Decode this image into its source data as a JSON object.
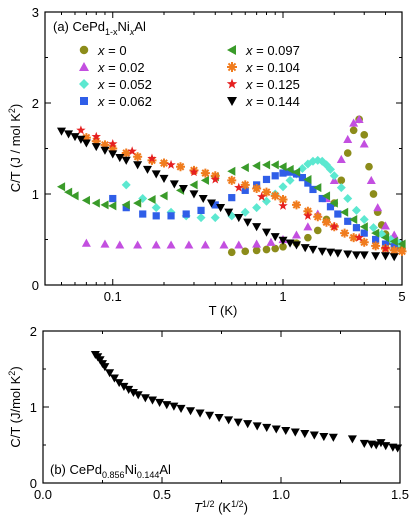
{
  "chart_data": [
    {
      "type": "scatter",
      "panel_label": "(a) CePd",
      "formula_sub1": "1-x",
      "formula_mid": "Ni",
      "formula_sub2": "x",
      "formula_end": "Al",
      "xlabel": "T (K)",
      "ylabel_parts": {
        "pre": "C/T (J / mol K",
        "sup": "2",
        "post": ")"
      },
      "x_scale": "log",
      "xlim": [
        0.04,
        5
      ],
      "ylim": [
        0,
        3
      ],
      "x_ticks": [
        {
          "v": 0.1,
          "label": "0.1"
        },
        {
          "v": 1,
          "label": "1"
        },
        {
          "v": 5,
          "label": "5"
        }
      ],
      "y_ticks": [
        {
          "v": 0,
          "label": "0"
        },
        {
          "v": 1,
          "label": "1"
        },
        {
          "v": 2,
          "label": "2"
        },
        {
          "v": 3,
          "label": "3"
        }
      ],
      "legend_position": "top",
      "series": [
        {
          "name": "x = 0",
          "x_text": "x",
          "val_text": " = 0",
          "marker": "circle",
          "color": "#8c8c1a",
          "x": [
            0.5,
            0.6,
            0.7,
            0.8,
            0.9,
            1.0,
            1.2,
            1.4,
            1.6,
            1.8,
            2.0,
            2.2,
            2.4,
            2.6,
            2.8,
            3.0,
            3.2,
            3.4,
            3.6,
            3.8,
            4.0,
            4.3,
            4.6,
            5.0
          ],
          "y": [
            0.36,
            0.37,
            0.38,
            0.39,
            0.4,
            0.42,
            0.46,
            0.52,
            0.6,
            0.72,
            0.9,
            1.15,
            1.45,
            1.7,
            1.82,
            1.65,
            1.3,
            1.0,
            0.8,
            0.66,
            0.56,
            0.48,
            0.43,
            0.4
          ]
        },
        {
          "name": "x = 0.02",
          "x_text": "x",
          "val_text": " = 0.02",
          "marker": "triangle-up",
          "color": "#c34fe0",
          "x": [
            0.07,
            0.09,
            0.11,
            0.14,
            0.18,
            0.22,
            0.28,
            0.35,
            0.45,
            0.55,
            0.7,
            0.85,
            1.0,
            1.2,
            1.4,
            1.6,
            1.8,
            2.0,
            2.2,
            2.4,
            2.6,
            2.8,
            3.0,
            3.3,
            3.6,
            4.0,
            4.5
          ],
          "y": [
            0.46,
            0.45,
            0.44,
            0.44,
            0.44,
            0.44,
            0.44,
            0.44,
            0.44,
            0.44,
            0.45,
            0.47,
            0.5,
            0.55,
            0.64,
            0.78,
            0.95,
            1.15,
            1.38,
            1.6,
            1.78,
            1.82,
            1.55,
            1.15,
            0.85,
            0.65,
            0.55
          ]
        },
        {
          "name": "x = 0.052",
          "x_text": "x",
          "val_text": " = 0.052",
          "marker": "diamond",
          "color": "#5ce8d0",
          "x": [
            0.12,
            0.15,
            0.18,
            0.22,
            0.27,
            0.33,
            0.4,
            0.5,
            0.6,
            0.7,
            0.8,
            0.9,
            1.0,
            1.1,
            1.2,
            1.3,
            1.4,
            1.5,
            1.6,
            1.7,
            1.8,
            1.9,
            2.0,
            2.2,
            2.4,
            2.7,
            3.0,
            3.4,
            3.8,
            4.3,
            4.8
          ],
          "y": [
            1.1,
            0.95,
            0.85,
            0.8,
            0.76,
            0.74,
            0.74,
            0.76,
            0.8,
            0.85,
            0.92,
            1.0,
            1.08,
            1.15,
            1.22,
            1.28,
            1.33,
            1.36,
            1.37,
            1.36,
            1.32,
            1.27,
            1.2,
            1.07,
            0.95,
            0.82,
            0.72,
            0.63,
            0.56,
            0.5,
            0.46
          ]
        },
        {
          "name": "x = 0.062",
          "x_text": "x",
          "val_text": " = 0.062",
          "marker": "square",
          "color": "#2f5ee8",
          "x": [
            0.1,
            0.12,
            0.15,
            0.18,
            0.22,
            0.27,
            0.33,
            0.4,
            0.5,
            0.6,
            0.7,
            0.8,
            0.9,
            1.0,
            1.1,
            1.2,
            1.3,
            1.4,
            1.5,
            1.7,
            1.9,
            2.1,
            2.4,
            2.7,
            3.0,
            3.5,
            4.0,
            4.5
          ],
          "y": [
            0.95,
            0.85,
            0.78,
            0.76,
            0.76,
            0.78,
            0.82,
            0.88,
            0.96,
            1.04,
            1.1,
            1.16,
            1.2,
            1.23,
            1.24,
            1.22,
            1.18,
            1.12,
            1.05,
            0.95,
            0.86,
            0.78,
            0.7,
            0.63,
            0.57,
            0.5,
            0.45,
            0.42
          ]
        },
        {
          "name": "x = 0.097",
          "x_text": "x",
          "val_text": " = 0.097",
          "marker": "triangle-left",
          "color": "#3a9b2a",
          "x": [
            0.05,
            0.055,
            0.06,
            0.07,
            0.08,
            0.09,
            0.1,
            0.12,
            0.14,
            0.17,
            0.2,
            0.25,
            0.3,
            0.35,
            0.4,
            0.5,
            0.6,
            0.7,
            0.8,
            0.9,
            1.0,
            1.1,
            1.2,
            1.4,
            1.6,
            1.8,
            2.0,
            2.3,
            2.6,
            3.0,
            3.5,
            4.0,
            4.5,
            5.0
          ],
          "y": [
            1.08,
            1.02,
            0.98,
            0.93,
            0.9,
            0.88,
            0.87,
            0.88,
            0.9,
            0.94,
            0.98,
            1.04,
            1.1,
            1.15,
            1.19,
            1.25,
            1.29,
            1.31,
            1.32,
            1.32,
            1.3,
            1.27,
            1.24,
            1.16,
            1.07,
            0.98,
            0.9,
            0.8,
            0.72,
            0.64,
            0.57,
            0.52,
            0.48,
            0.45
          ]
        },
        {
          "name": "x = 0.104",
          "x_text": "x",
          "val_text": " = 0.104",
          "marker": "asterisk",
          "color": "#f07c1e",
          "x": [
            0.07,
            0.08,
            0.09,
            0.1,
            0.12,
            0.14,
            0.17,
            0.2,
            0.25,
            0.3,
            0.35,
            0.4,
            0.5,
            0.6,
            0.7,
            0.8,
            0.9,
            1.0,
            1.2,
            1.4,
            1.6,
            1.8,
            2.0,
            2.3,
            2.6,
            3.0,
            3.5,
            4.0,
            4.5,
            5.0
          ],
          "y": [
            1.62,
            1.58,
            1.54,
            1.5,
            1.45,
            1.41,
            1.37,
            1.34,
            1.3,
            1.26,
            1.23,
            1.2,
            1.15,
            1.1,
            1.06,
            1.02,
            0.98,
            0.94,
            0.88,
            0.81,
            0.75,
            0.69,
            0.64,
            0.57,
            0.52,
            0.47,
            0.43,
            0.4,
            0.38,
            0.37
          ]
        },
        {
          "name": "x = 0.125",
          "x_text": "x",
          "val_text": " = 0.125",
          "marker": "star",
          "color": "#e52020",
          "x": [
            0.065,
            0.08,
            0.1,
            0.13,
            0.17,
            0.22,
            0.3,
            0.4,
            0.55,
            0.75,
            1.0,
            1.4,
            2.0,
            2.8,
            4.0
          ],
          "y": [
            1.7,
            1.63,
            1.55,
            1.47,
            1.39,
            1.32,
            1.24,
            1.16,
            1.07,
            0.97,
            0.87,
            0.76,
            0.64,
            0.52,
            0.4
          ]
        },
        {
          "name": "x = 0.144",
          "x_text": "x",
          "val_text": " = 0.144",
          "marker": "triangle-down",
          "color": "#000000",
          "x": [
            0.05,
            0.055,
            0.06,
            0.065,
            0.07,
            0.08,
            0.09,
            0.1,
            0.11,
            0.12,
            0.14,
            0.16,
            0.18,
            0.2,
            0.23,
            0.26,
            0.3,
            0.34,
            0.38,
            0.43,
            0.48,
            0.55,
            0.62,
            0.7,
            0.8,
            0.9,
            1.0,
            1.1,
            1.2,
            1.35,
            1.5,
            1.7,
            1.9,
            2.1,
            2.4,
            2.7,
            3.0,
            3.5,
            4.0,
            4.5
          ],
          "y": [
            1.69,
            1.66,
            1.63,
            1.6,
            1.56,
            1.52,
            1.48,
            1.44,
            1.4,
            1.37,
            1.32,
            1.27,
            1.22,
            1.17,
            1.11,
            1.06,
            1.0,
            0.95,
            0.9,
            0.85,
            0.8,
            0.74,
            0.69,
            0.64,
            0.58,
            0.53,
            0.49,
            0.46,
            0.44,
            0.41,
            0.39,
            0.37,
            0.36,
            0.35,
            0.34,
            0.33,
            0.33,
            0.32,
            0.32,
            0.31
          ]
        }
      ]
    },
    {
      "type": "scatter",
      "panel_label": "(b) CePd",
      "formula_sub1": "0.856",
      "formula_mid": "Ni",
      "formula_sub2": "0.144",
      "formula_end": "Al",
      "xlabel_parts": {
        "pre": "T",
        "sup1": "1/2",
        "mid": " (K",
        "sup2": "1/2",
        "post": ")"
      },
      "ylabel_parts": {
        "pre": "C/T (J/mol K",
        "sup": "2",
        "post": ")"
      },
      "xlim": [
        0,
        1.5
      ],
      "ylim": [
        0,
        2
      ],
      "x_ticks": [
        {
          "v": 0,
          "label": "0.0"
        },
        {
          "v": 0.5,
          "label": "0.5"
        },
        {
          "v": 1.0,
          "label": "1.0"
        },
        {
          "v": 1.5,
          "label": "1.5"
        }
      ],
      "y_ticks": [
        {
          "v": 0,
          "label": "0"
        },
        {
          "v": 1,
          "label": "1"
        },
        {
          "v": 2,
          "label": "2"
        }
      ],
      "series": [
        {
          "name": "",
          "marker": "triangle-down",
          "color": "#000000",
          "x": [
            0.22,
            0.23,
            0.24,
            0.25,
            0.26,
            0.28,
            0.3,
            0.32,
            0.34,
            0.36,
            0.38,
            0.4,
            0.43,
            0.46,
            0.49,
            0.52,
            0.55,
            0.58,
            0.62,
            0.66,
            0.7,
            0.74,
            0.78,
            0.82,
            0.86,
            0.9,
            0.94,
            0.98,
            1.02,
            1.06,
            1.1,
            1.14,
            1.18,
            1.22,
            1.3,
            1.35,
            1.38,
            1.4,
            1.42,
            1.44,
            1.47,
            1.49
          ],
          "y": [
            1.69,
            1.66,
            1.62,
            1.57,
            1.53,
            1.45,
            1.38,
            1.32,
            1.27,
            1.23,
            1.19,
            1.16,
            1.12,
            1.09,
            1.06,
            1.03,
            1.01,
            0.98,
            0.95,
            0.92,
            0.89,
            0.86,
            0.83,
            0.8,
            0.78,
            0.75,
            0.73,
            0.71,
            0.69,
            0.67,
            0.65,
            0.63,
            0.61,
            0.6,
            0.58,
            0.52,
            0.51,
            0.5,
            0.53,
            0.49,
            0.47,
            0.46
          ]
        }
      ]
    }
  ]
}
